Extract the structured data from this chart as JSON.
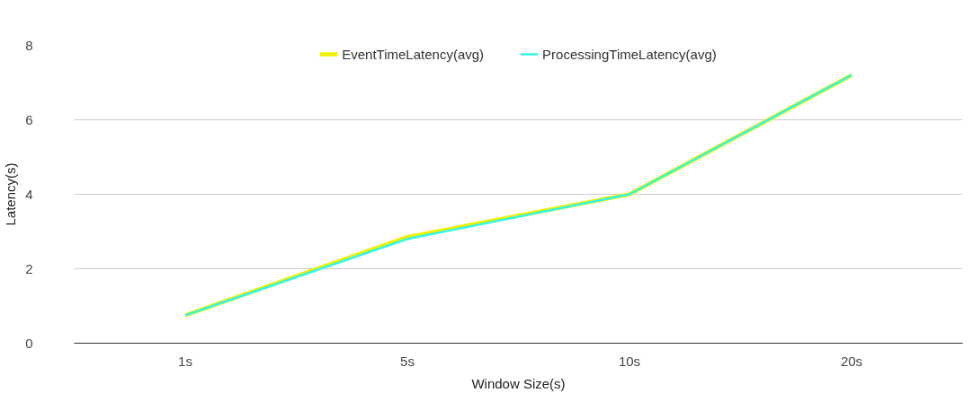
{
  "chart_data": {
    "type": "line",
    "xlabel": "Window Size(s)",
    "ylabel": "Latency(s)",
    "categories": [
      "1s",
      "5s",
      "10s",
      "20s"
    ],
    "series": [
      {
        "name": "EventTimeLatency(avg)",
        "color": "#f0f000",
        "values": [
          0.75,
          2.85,
          4.0,
          7.2
        ]
      },
      {
        "name": "ProcessingTimeLatency(avg)",
        "color": "#33f5e8",
        "values": [
          0.75,
          2.8,
          4.0,
          7.2
        ]
      }
    ],
    "ylim": [
      0,
      8
    ],
    "yticks": [
      0,
      2,
      4,
      6,
      8
    ],
    "grid": "y",
    "legend": "top",
    "marker": "none",
    "line_style": "solid"
  }
}
